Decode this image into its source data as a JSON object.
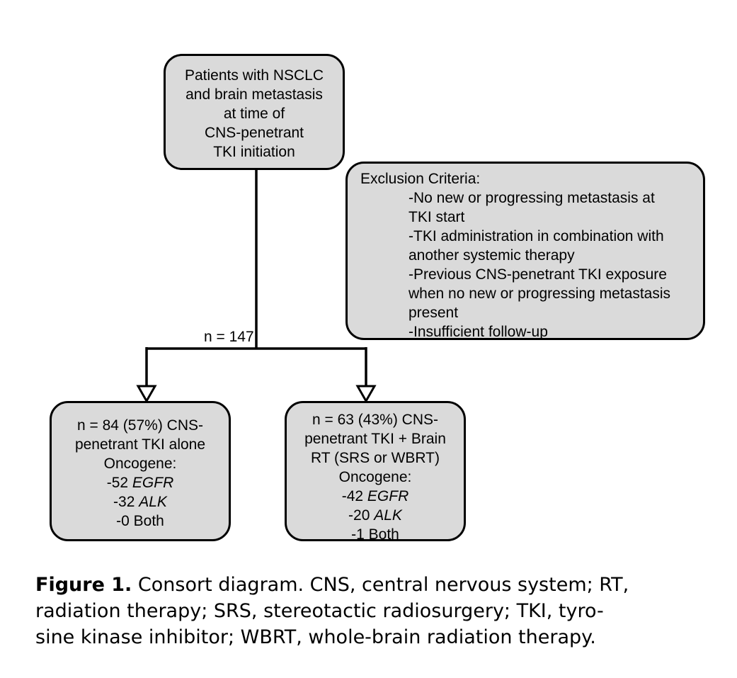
{
  "start_box": {
    "lines": [
      "Patients with NSCLC",
      "and brain metastasis",
      "at time of",
      "CNS-penetrant",
      "TKI initiation"
    ]
  },
  "exclusion_box": {
    "title": "Exclusion Criteria:",
    "lines": [
      "-No new or progressing metastasis at",
      "TKI start",
      "-TKI administration in combination with",
      "another systemic therapy",
      "-Previous CNS-penetrant TKI exposure",
      "when no new or progressing metastasis",
      "present",
      "-Insufficient follow-up"
    ]
  },
  "n_total": "n = 147",
  "left_box": {
    "lines": [
      "n = 84 (57%) CNS-",
      "penetrant TKI alone",
      "Oncogene:"
    ],
    "oncogenes": [
      {
        "prefix": "-52 ",
        "name": "EGFR"
      },
      {
        "prefix": "-32 ",
        "name": "ALK"
      },
      {
        "prefix": "-0 ",
        "name": "Both"
      }
    ]
  },
  "right_box": {
    "lines": [
      "n = 63 (43%) CNS-",
      "penetrant TKI + Brain",
      "RT (SRS or WBRT)",
      "Oncogene:"
    ],
    "oncogenes": [
      {
        "prefix": "-42 ",
        "name": "EGFR"
      },
      {
        "prefix": "-20 ",
        "name": "ALK"
      },
      {
        "prefix": "-1 ",
        "name": "Both"
      }
    ]
  },
  "caption": {
    "label": "Figure 1.",
    "lines": [
      " Consort diagram. CNS, central nervous system; RT,",
      "radiation therapy; SRS, stereotactic radiosurgery; TKI, tyro-",
      "sine kinase inhibitor; WBRT, whole-brain radiation therapy."
    ]
  }
}
